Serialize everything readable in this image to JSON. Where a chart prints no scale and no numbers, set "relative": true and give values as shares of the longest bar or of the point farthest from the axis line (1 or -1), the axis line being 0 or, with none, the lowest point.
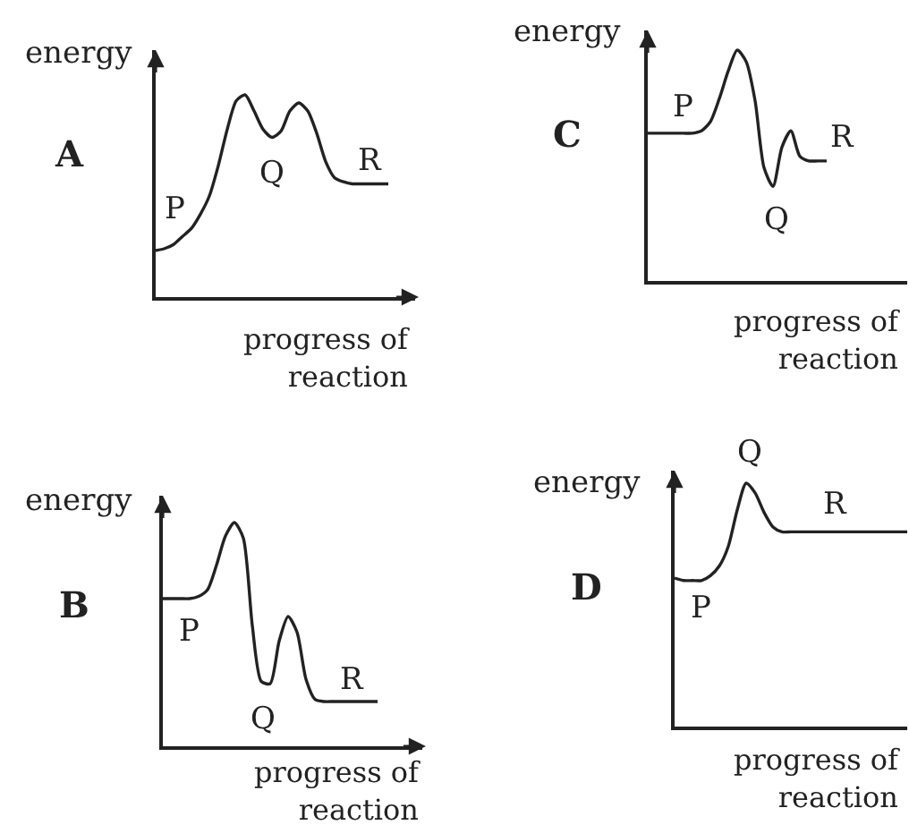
{
  "chart_data": [
    {
      "type": "line",
      "title": "A",
      "ylabel": "energy",
      "xlabel": "progress of reaction",
      "relative": true,
      "categories": [
        null,
        null,
        null,
        null,
        null,
        null,
        null,
        null,
        null,
        null,
        null,
        null,
        null,
        null,
        null,
        null,
        null,
        null,
        null,
        null,
        null,
        null,
        null,
        null,
        null,
        null,
        null,
        null,
        null,
        null
      ],
      "series": [
        {
          "color": "#222222",
          "values": [
            0.23,
            0.24,
            0.26,
            0.3,
            0.34,
            0.41,
            0.5,
            0.65,
            0.83,
            0.97,
            1.0,
            0.92,
            0.83,
            0.79,
            0.82,
            0.92,
            0.96,
            0.92,
            0.81,
            0.67,
            0.59,
            0.57,
            0.56,
            0.56,
            0.56,
            0.56,
            0.56,
            null,
            null,
            null
          ]
        }
      ],
      "annotations": [
        "P",
        "Q",
        "R"
      ]
    },
    {
      "type": "line",
      "title": "C",
      "ylabel": "energy",
      "xlabel": "progress of reaction",
      "relative": true,
      "categories": [
        null,
        null,
        null,
        null,
        null,
        null,
        null,
        null,
        null,
        null,
        null,
        null,
        null,
        null,
        null,
        null,
        null,
        null,
        null,
        null,
        null,
        null,
        null,
        null,
        null,
        null,
        null,
        null,
        null,
        null
      ],
      "series": [
        {
          "color": "#222222",
          "values": [
            0.64,
            0.64,
            0.64,
            0.64,
            0.64,
            0.64,
            0.65,
            0.69,
            0.79,
            0.91,
            1.0,
            0.95,
            0.78,
            0.49,
            0.41,
            0.58,
            0.65,
            0.54,
            0.52,
            0.52,
            0.52,
            null,
            null,
            null,
            null,
            null,
            null,
            null,
            null,
            null
          ]
        }
      ],
      "annotations": [
        "P",
        "Q",
        "R"
      ]
    },
    {
      "type": "line",
      "title": "B",
      "ylabel": "energy",
      "xlabel": "progress of reaction",
      "relative": true,
      "categories": [
        null,
        null,
        null,
        null,
        null,
        null,
        null,
        null,
        null,
        null,
        null,
        null,
        null,
        null,
        null,
        null,
        null,
        null,
        null,
        null,
        null,
        null,
        null,
        null,
        null,
        null,
        null,
        null,
        null,
        null
      ],
      "series": [
        {
          "color": "#222222",
          "values": [
            0.66,
            0.66,
            0.66,
            0.66,
            0.67,
            0.7,
            0.81,
            0.94,
            1.0,
            0.93,
            0.54,
            0.29,
            0.28,
            0.47,
            0.58,
            0.51,
            0.3,
            0.21,
            0.2,
            0.2,
            0.2,
            0.2,
            0.2,
            0.2,
            0.2,
            null,
            null,
            null,
            null,
            null
          ]
        }
      ],
      "annotations": [
        "P",
        "Q",
        "R"
      ]
    },
    {
      "type": "line",
      "title": "D",
      "ylabel": "energy",
      "xlabel": "progress of reaction",
      "relative": true,
      "categories": [
        null,
        null,
        null,
        null,
        null,
        null,
        null,
        null,
        null,
        null,
        null,
        null,
        null,
        null,
        null,
        null,
        null,
        null,
        null,
        null,
        null,
        null,
        null,
        null,
        null,
        null,
        null
      ],
      "series": [
        {
          "color": "#222222",
          "values": [
            0.61,
            0.6,
            0.6,
            0.6,
            0.62,
            0.66,
            0.74,
            0.89,
            1.0,
            0.96,
            0.88,
            0.82,
            0.8,
            0.8,
            0.8,
            0.8,
            0.8,
            0.8,
            0.8,
            0.8,
            0.8,
            0.8,
            0.8,
            0.8,
            0.8,
            0.8,
            0.8
          ]
        }
      ],
      "annotations": [
        "P",
        "Q",
        "R"
      ]
    }
  ]
}
